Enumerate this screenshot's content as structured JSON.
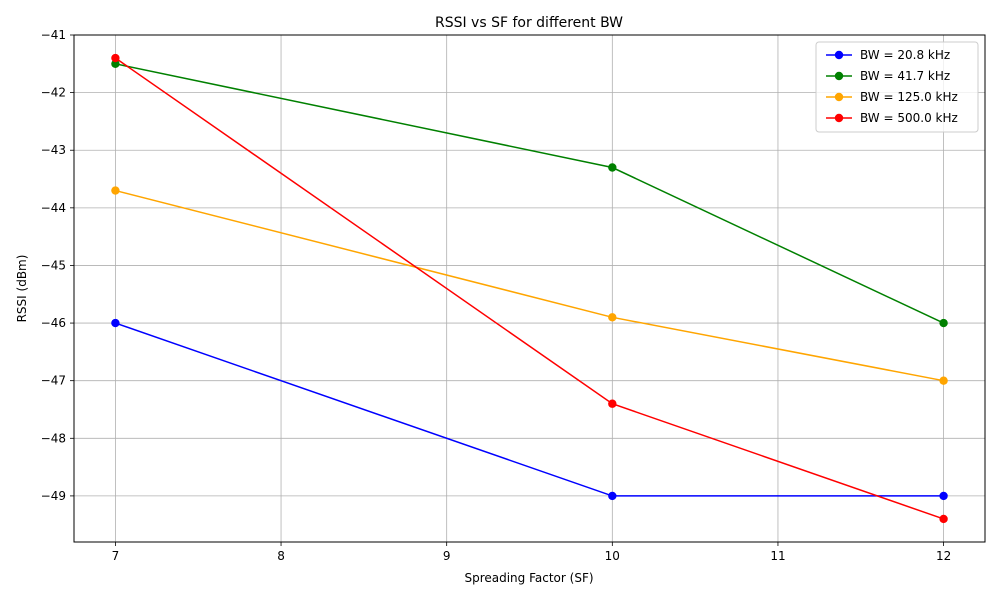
{
  "chart_data": {
    "type": "line",
    "title": "RSSI vs SF for different BW",
    "xlabel": "Spreading Factor (SF)",
    "ylabel": "RSSI (dBm)",
    "xlim": [
      6.75,
      12.25
    ],
    "ylim": [
      -49.8,
      -41
    ],
    "xticks": [
      7,
      8,
      9,
      10,
      11,
      12
    ],
    "yticks": [
      -49,
      -48,
      -47,
      -46,
      -45,
      -44,
      -43,
      -42,
      -41
    ],
    "xtick_labels": [
      "7",
      "8",
      "9",
      "10",
      "11",
      "12"
    ],
    "ytick_labels": [
      "−49",
      "−48",
      "−47",
      "−46",
      "−45",
      "−44",
      "−43",
      "−42",
      "−41"
    ],
    "grid": true,
    "legend_position": "top-right",
    "x": [
      7,
      10,
      12
    ],
    "series": [
      {
        "name": "BW = 20.8 kHz",
        "color": "#0000ff",
        "values": [
          -46.0,
          -49.0,
          -49.0
        ]
      },
      {
        "name": "BW = 41.7 kHz",
        "color": "#008000",
        "values": [
          -41.5,
          -43.3,
          -46.0
        ]
      },
      {
        "name": "BW = 125.0 kHz",
        "color": "#ffa500",
        "values": [
          -43.7,
          -45.9,
          -47.0
        ]
      },
      {
        "name": "BW = 500.0 kHz",
        "color": "#ff0000",
        "values": [
          -41.4,
          -47.4,
          -49.4
        ]
      }
    ]
  }
}
